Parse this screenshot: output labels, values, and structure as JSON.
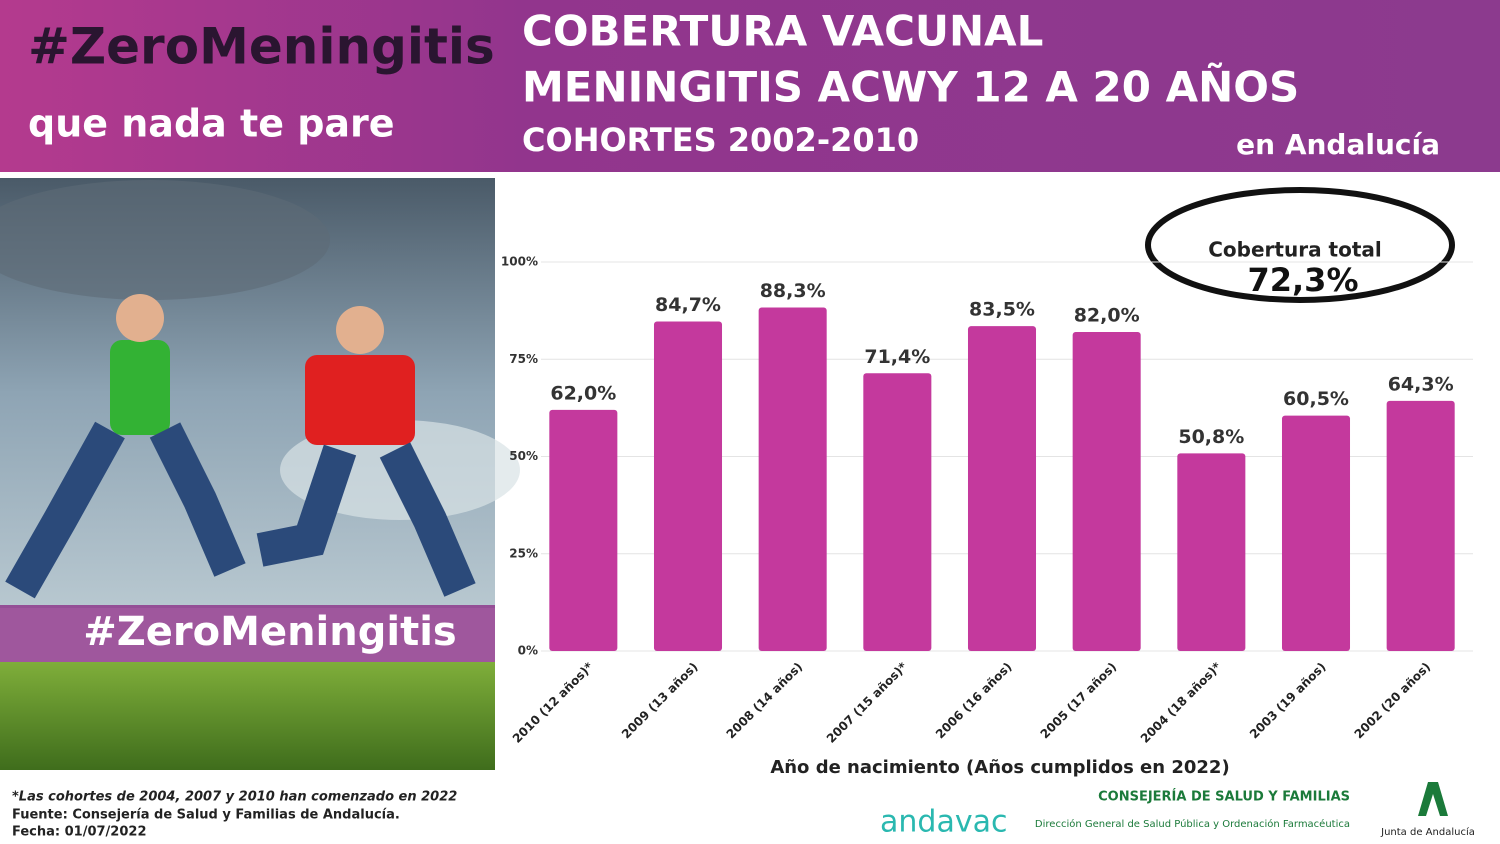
{
  "header": {
    "hashtag": "#ZeroMeningitis",
    "slogan": "que nada te pare",
    "title_line1": "COBERTURA VACUNAL",
    "title_line2": "MENINGITIS ACWY 12 A 20 AÑOS",
    "title_line3": "COHORTES  2002-2010",
    "region": "en Andalucía"
  },
  "photo": {
    "banner": "#ZeroMeningitis"
  },
  "chart_data": {
    "type": "bar",
    "categories": [
      "2010 (12 años)*",
      "2009 (13 años)",
      "2008 (14 años)",
      "2007 (15 años)*",
      "2006 (16 años)",
      "2005 (17 años)",
      "2004 (18 años)*",
      "2003 (19 años)",
      "2002 (20 años)"
    ],
    "values": [
      62.0,
      84.7,
      88.3,
      71.4,
      83.5,
      82.0,
      50.8,
      60.5,
      64.3
    ],
    "value_labels": [
      "62,0%",
      "84,7%",
      "88,3%",
      "71,4%",
      "83,5%",
      "82,0%",
      "50,8%",
      "60,5%",
      "64,3%"
    ],
    "color": "#c4399d",
    "ylim": [
      0,
      100
    ],
    "yticks": [
      {
        "value": 0,
        "label": "0%"
      },
      {
        "value": 25,
        "label": "25%"
      },
      {
        "value": 50,
        "label": "50%"
      },
      {
        "value": 75,
        "label": "75%"
      },
      {
        "value": 100,
        "label": "100%"
      }
    ],
    "grid": true,
    "x_label": "Año de nacimiento  (Años cumplidos en 2022)",
    "annotation": {
      "label": "Cobertura total",
      "value": "72,3%"
    }
  },
  "footer": {
    "note": "*Las cohortes de 2004, 2007 y 2010 han comenzado en 2022",
    "source": "Fuente: Consejería de Salud y Familias de Andalucía.",
    "date": "Fecha: 01/07/2022",
    "logo_andavac": "andavac",
    "ministry": "CONSEJERÍA DE SALUD Y FAMILIAS",
    "direction": "Dirección General de Salud Pública y Ordenación Farmacéutica",
    "junta": "Junta de Andalucía"
  }
}
